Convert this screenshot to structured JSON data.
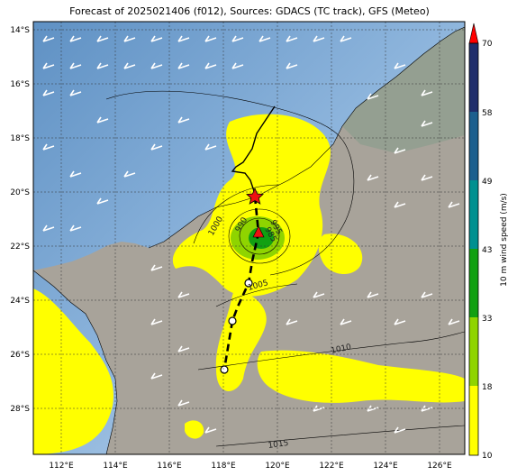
{
  "title": "Forecast of 2025021406 (f012), Sources: GDACS (TC track), GFS (Meteo)",
  "lon_ticks": [
    "112°E",
    "114°E",
    "116°E",
    "118°E",
    "120°E",
    "122°E",
    "124°E",
    "126°E"
  ],
  "lat_ticks": [
    "14°S",
    "16°S",
    "18°S",
    "20°S",
    "22°S",
    "24°S",
    "26°S",
    "28°S"
  ],
  "colorbar": {
    "label": "10 m wind speed (m/s)",
    "ticks": [
      "10",
      "18",
      "33",
      "43",
      "49",
      "58",
      "70"
    ],
    "colors": [
      "#ffff00",
      "#8fd400",
      "#12a012",
      "#009090",
      "#1d5f8e",
      "#1f2d6b"
    ],
    "arrow_color": "#ff0000"
  },
  "isobars": [
    {
      "label": "1000"
    },
    {
      "label": "990"
    },
    {
      "label": "995"
    },
    {
      "label": "985"
    },
    {
      "label": "1005"
    },
    {
      "label": "1010"
    },
    {
      "label": "1015"
    }
  ],
  "storm": {
    "current_marker": "red-star",
    "forecast_marker": "red-triangle",
    "track_points": [
      "open-circle",
      "open-circle",
      "open-circle"
    ]
  }
}
